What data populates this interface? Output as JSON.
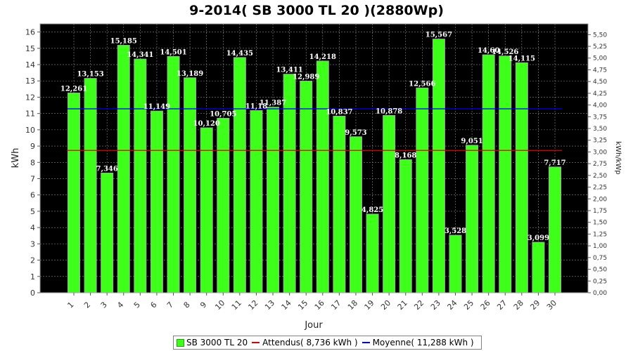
{
  "chart_data": {
    "type": "bar",
    "title": "9-2014( SB 3000 TL 20 )(2880Wp)",
    "xlabel": "Jour",
    "ylabel": "kWh",
    "ylabel_right": "kWh/kWp",
    "ylim": [
      0,
      16.5
    ],
    "ylim_right": [
      0,
      5.729
    ],
    "yticks": [
      0,
      1,
      2,
      3,
      4,
      5,
      6,
      7,
      8,
      9,
      10,
      11,
      12,
      13,
      14,
      15,
      16
    ],
    "yticks_right": [
      "0,00",
      "0,25",
      "0,50",
      "0,75",
      "1,00",
      "1,25",
      "1,50",
      "1,75",
      "2,00",
      "2,25",
      "2,50",
      "2,75",
      "3,00",
      "3,25",
      "3,50",
      "3,75",
      "4,00",
      "4,25",
      "4,50",
      "4,75",
      "5,00",
      "5,25",
      "5,50"
    ],
    "categories": [
      "1",
      "2",
      "3",
      "4",
      "5",
      "6",
      "7",
      "8",
      "9",
      "10",
      "11",
      "12",
      "13",
      "14",
      "15",
      "16",
      "17",
      "18",
      "19",
      "20",
      "21",
      "22",
      "23",
      "24",
      "25",
      "26",
      "27",
      "28",
      "29",
      "30"
    ],
    "series": [
      {
        "name": "SB 3000 TL 20",
        "values": [
          12.261,
          13.153,
          7.346,
          15.185,
          14.341,
          11.149,
          14.501,
          13.189,
          10.12,
          10.705,
          14.435,
          11.18,
          11.387,
          13.411,
          12.989,
          14.218,
          10.837,
          9.573,
          4.825,
          10.878,
          8.168,
          12.566,
          15.567,
          3.528,
          9.051,
          14.6,
          14.526,
          14.115,
          3.099,
          7.717
        ],
        "labels": [
          "12,261",
          "13,153",
          "7,346",
          "15,185",
          "14,341",
          "11,149",
          "14,501",
          "13,189",
          "10,120",
          "10,705",
          "14,435",
          "11,18",
          "11,387",
          "13,411",
          "12,989",
          "14,218",
          "10,837",
          "9,573",
          "4,825",
          "10,878",
          "8,168",
          "12,566",
          "15,567",
          "3,528",
          "9,051",
          "14,60",
          "14,526",
          "14,115",
          "3,099",
          "7,717"
        ],
        "color": "#3dff1a"
      }
    ],
    "reference_lines": [
      {
        "name": "Attendus( 8,736 kWh )",
        "value": 8.736,
        "color": "#e00000"
      },
      {
        "name": "Moyenne( 11,288 kWh )",
        "value": 11.288,
        "color": "#0000e6"
      }
    ],
    "plot_background": "#000000",
    "grid": true,
    "legend_position": "bottom"
  },
  "legend": {
    "bar_label": "SB 3000 TL 20",
    "expected_label": "Attendus( 8,736 kWh )",
    "average_label": "Moyenne( 11,288 kWh )"
  }
}
